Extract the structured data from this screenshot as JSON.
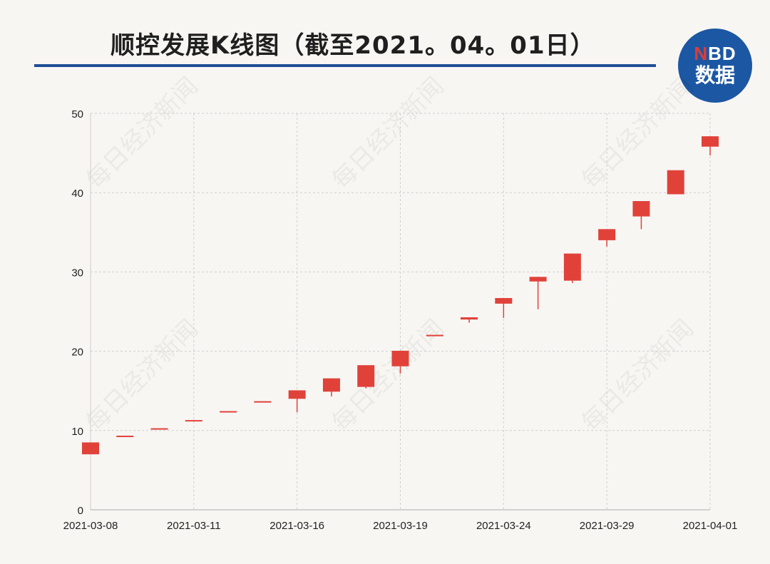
{
  "header": {
    "title": "顺控发展K线图（截至2021。04。01日）",
    "logo_line1_n": "N",
    "logo_line1_rest": "BD",
    "logo_line2": "数据"
  },
  "watermark": "每日经济新闻",
  "colors": {
    "candle": "#e0423a",
    "rule": "#1f4e96",
    "logo_bg": "#1c57a3",
    "grid": "#cfcfcf"
  },
  "chart_data": {
    "type": "candlestick",
    "ylim": [
      0,
      50
    ],
    "yticks": [
      0,
      10,
      20,
      30,
      40,
      50
    ],
    "xtick_labels": [
      "2021-03-08",
      "2021-03-11",
      "2021-03-16",
      "2021-03-19",
      "2021-03-24",
      "2021-03-29",
      "2021-04-01"
    ],
    "xtick_indices": [
      0,
      3,
      6,
      9,
      12,
      15,
      18
    ],
    "grid": true,
    "candles": [
      {
        "date": "2021-03-08",
        "open": 7.0,
        "close": 8.5,
        "high": 8.5,
        "low": 7.0
      },
      {
        "date": "2021-03-09",
        "open": 9.35,
        "close": 9.35,
        "high": 9.35,
        "low": 9.35
      },
      {
        "date": "2021-03-10",
        "open": 10.29,
        "close": 10.29,
        "high": 10.29,
        "low": 10.29
      },
      {
        "date": "2021-03-11",
        "open": 11.32,
        "close": 11.32,
        "high": 11.32,
        "low": 11.32
      },
      {
        "date": "2021-03-12",
        "open": 12.45,
        "close": 12.45,
        "high": 12.45,
        "low": 12.45
      },
      {
        "date": "2021-03-15",
        "open": 13.7,
        "close": 13.7,
        "high": 13.7,
        "low": 13.7
      },
      {
        "date": "2021-03-16",
        "open": 14.0,
        "close": 15.07,
        "high": 15.07,
        "low": 12.3
      },
      {
        "date": "2021-03-17",
        "open": 14.9,
        "close": 16.58,
        "high": 16.58,
        "low": 14.3
      },
      {
        "date": "2021-03-18",
        "open": 15.5,
        "close": 18.24,
        "high": 18.24,
        "low": 15.3
      },
      {
        "date": "2021-03-19",
        "open": 18.1,
        "close": 20.06,
        "high": 20.06,
        "low": 17.2
      },
      {
        "date": "2021-03-22",
        "open": 22.07,
        "close": 22.07,
        "high": 22.07,
        "low": 22.07
      },
      {
        "date": "2021-03-23",
        "open": 24.0,
        "close": 24.28,
        "high": 24.28,
        "low": 23.6
      },
      {
        "date": "2021-03-24",
        "open": 26.0,
        "close": 26.71,
        "high": 26.71,
        "low": 24.2
      },
      {
        "date": "2021-03-25",
        "open": 28.8,
        "close": 29.38,
        "high": 29.38,
        "low": 25.3
      },
      {
        "date": "2021-03-26",
        "open": 28.9,
        "close": 32.32,
        "high": 32.32,
        "low": 28.6
      },
      {
        "date": "2021-03-29",
        "open": 34.0,
        "close": 35.4,
        "high": 35.4,
        "low": 33.2
      },
      {
        "date": "2021-03-30",
        "open": 37.0,
        "close": 38.94,
        "high": 38.94,
        "low": 35.4
      },
      {
        "date": "2021-03-31",
        "open": 39.8,
        "close": 42.83,
        "high": 42.83,
        "low": 39.8
      },
      {
        "date": "2021-04-01",
        "open": 45.8,
        "close": 47.11,
        "high": 47.11,
        "low": 44.7
      }
    ]
  }
}
